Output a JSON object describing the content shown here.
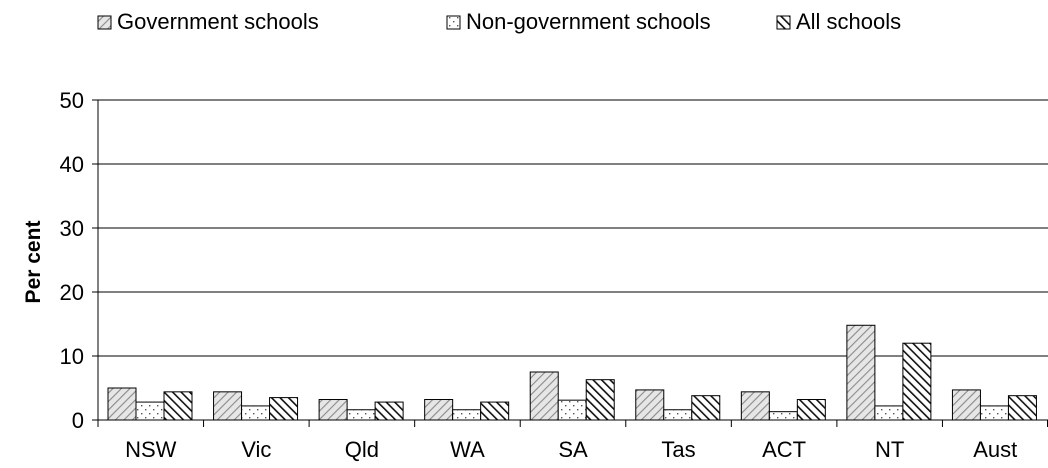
{
  "chart_data": {
    "type": "bar",
    "categories": [
      "NSW",
      "Vic",
      "Qld",
      "WA",
      "SA",
      "Tas",
      "ACT",
      "NT",
      "Aust"
    ],
    "series": [
      {
        "name": "Government schools",
        "values": [
          5.0,
          4.4,
          3.2,
          3.2,
          7.5,
          4.7,
          4.4,
          14.8,
          4.7
        ]
      },
      {
        "name": "Non-government schools",
        "values": [
          2.8,
          2.2,
          1.6,
          1.6,
          3.1,
          1.6,
          1.3,
          2.2,
          2.2
        ]
      },
      {
        "name": "All schools",
        "values": [
          4.4,
          3.5,
          2.8,
          2.8,
          6.3,
          3.8,
          3.2,
          12.0,
          3.8
        ]
      }
    ],
    "title": "",
    "xlabel": "",
    "ylabel": "Per cent",
    "ylim": [
      0,
      50
    ],
    "yticks": [
      0,
      10,
      20,
      30,
      40,
      50
    ],
    "grid": true,
    "legend_position": "top"
  }
}
